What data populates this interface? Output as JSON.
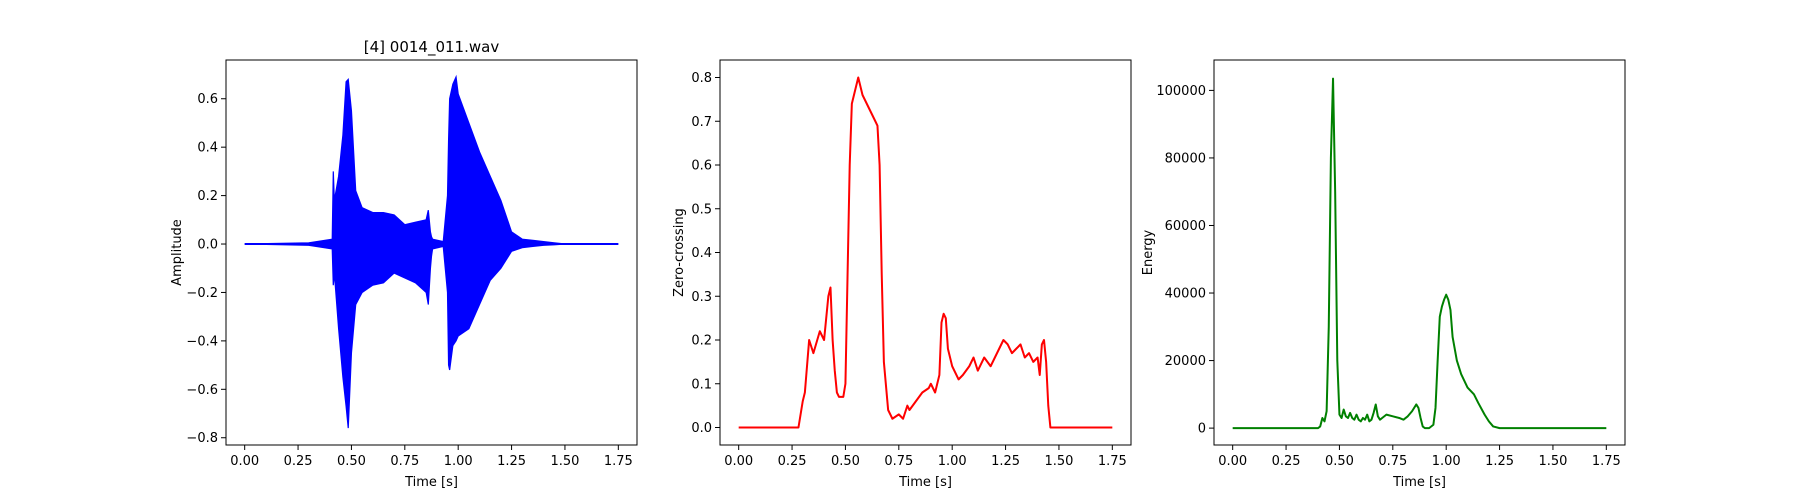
{
  "chart_data": [
    {
      "type": "line",
      "title": "[4] 0014_011.wav",
      "xlabel": "Time [s]",
      "ylabel": "Amplitude",
      "xlim": [
        -0.0875,
        1.8375
      ],
      "ylim": [
        -0.83,
        0.76
      ],
      "xticks": [
        0.0,
        0.25,
        0.5,
        0.75,
        1.0,
        1.25,
        1.5,
        1.75
      ],
      "xtick_labels": [
        "0.00",
        "0.25",
        "0.50",
        "0.75",
        "1.00",
        "1.25",
        "1.50",
        "1.75"
      ],
      "yticks": [
        -0.8,
        -0.6,
        -0.4,
        -0.2,
        0.0,
        0.2,
        0.4,
        0.6
      ],
      "ytick_labels": [
        "−0.8",
        "−0.6",
        "−0.4",
        "−0.2",
        "0.0",
        "0.2",
        "0.4",
        "0.6"
      ],
      "series": [
        {
          "color": "#0000ff",
          "style": "envelope",
          "x": [
            0.0,
            0.3,
            0.41,
            0.415,
            0.42,
            0.44,
            0.46,
            0.475,
            0.485,
            0.5,
            0.52,
            0.55,
            0.6,
            0.65,
            0.7,
            0.75,
            0.8,
            0.85,
            0.86,
            0.87,
            0.875,
            0.88,
            0.93,
            0.95,
            0.955,
            0.96,
            0.975,
            0.99,
            1.0,
            1.05,
            1.1,
            1.15,
            1.2,
            1.25,
            1.3,
            1.35,
            1.4,
            1.45,
            1.5,
            1.75
          ],
          "upper": [
            0.0,
            0.005,
            0.02,
            0.3,
            0.18,
            0.28,
            0.45,
            0.67,
            0.68,
            0.55,
            0.22,
            0.15,
            0.13,
            0.13,
            0.12,
            0.08,
            0.09,
            0.1,
            0.14,
            0.05,
            0.03,
            0.02,
            0.01,
            0.2,
            0.43,
            0.6,
            0.66,
            0.69,
            0.62,
            0.5,
            0.38,
            0.28,
            0.18,
            0.05,
            0.02,
            0.015,
            0.01,
            0.005,
            0.0,
            0.0
          ],
          "lower": [
            0.0,
            -0.005,
            -0.02,
            -0.17,
            -0.12,
            -0.35,
            -0.55,
            -0.67,
            -0.76,
            -0.45,
            -0.25,
            -0.2,
            -0.17,
            -0.16,
            -0.12,
            -0.14,
            -0.16,
            -0.2,
            -0.25,
            -0.1,
            -0.05,
            -0.02,
            -0.01,
            -0.2,
            -0.5,
            -0.52,
            -0.42,
            -0.4,
            -0.38,
            -0.35,
            -0.25,
            -0.15,
            -0.1,
            -0.03,
            -0.015,
            -0.01,
            -0.005,
            -0.003,
            0.0,
            0.0
          ]
        }
      ]
    },
    {
      "type": "line",
      "title": "",
      "xlabel": "Time [s]",
      "ylabel": "Zero-crossing",
      "xlim": [
        -0.0875,
        1.8375
      ],
      "ylim": [
        -0.04,
        0.84
      ],
      "xticks": [
        0.0,
        0.25,
        0.5,
        0.75,
        1.0,
        1.25,
        1.5,
        1.75
      ],
      "xtick_labels": [
        "0.00",
        "0.25",
        "0.50",
        "0.75",
        "1.00",
        "1.25",
        "1.50",
        "1.75"
      ],
      "yticks": [
        0.0,
        0.1,
        0.2,
        0.3,
        0.4,
        0.5,
        0.6,
        0.7,
        0.8
      ],
      "ytick_labels": [
        "0.0",
        "0.1",
        "0.2",
        "0.3",
        "0.4",
        "0.5",
        "0.6",
        "0.7",
        "0.8"
      ],
      "series": [
        {
          "color": "#ff0000",
          "x": [
            0.0,
            0.28,
            0.3,
            0.31,
            0.33,
            0.35,
            0.38,
            0.4,
            0.42,
            0.43,
            0.44,
            0.45,
            0.46,
            0.47,
            0.48,
            0.49,
            0.5,
            0.51,
            0.52,
            0.53,
            0.55,
            0.56,
            0.58,
            0.6,
            0.62,
            0.64,
            0.65,
            0.66,
            0.67,
            0.68,
            0.7,
            0.72,
            0.75,
            0.77,
            0.79,
            0.8,
            0.83,
            0.86,
            0.89,
            0.9,
            0.92,
            0.94,
            0.95,
            0.96,
            0.97,
            0.98,
            1.0,
            1.03,
            1.05,
            1.08,
            1.1,
            1.12,
            1.15,
            1.18,
            1.2,
            1.22,
            1.24,
            1.26,
            1.28,
            1.3,
            1.32,
            1.34,
            1.36,
            1.38,
            1.4,
            1.41,
            1.42,
            1.43,
            1.44,
            1.45,
            1.46,
            1.75
          ],
          "y": [
            0.0,
            0.0,
            0.06,
            0.08,
            0.2,
            0.17,
            0.22,
            0.2,
            0.3,
            0.32,
            0.2,
            0.13,
            0.08,
            0.07,
            0.07,
            0.07,
            0.1,
            0.35,
            0.6,
            0.74,
            0.78,
            0.8,
            0.76,
            0.74,
            0.72,
            0.7,
            0.69,
            0.6,
            0.35,
            0.15,
            0.04,
            0.02,
            0.03,
            0.02,
            0.05,
            0.04,
            0.06,
            0.08,
            0.09,
            0.1,
            0.08,
            0.12,
            0.24,
            0.26,
            0.25,
            0.18,
            0.14,
            0.11,
            0.12,
            0.14,
            0.16,
            0.13,
            0.16,
            0.14,
            0.16,
            0.18,
            0.2,
            0.19,
            0.17,
            0.18,
            0.19,
            0.16,
            0.17,
            0.15,
            0.16,
            0.12,
            0.19,
            0.2,
            0.15,
            0.05,
            0.0,
            0.0
          ]
        }
      ]
    },
    {
      "type": "line",
      "title": "",
      "xlabel": "Time [s]",
      "ylabel": "Energy",
      "xlim": [
        -0.0875,
        1.8375
      ],
      "ylim": [
        -5000,
        109000
      ],
      "xticks": [
        0.0,
        0.25,
        0.5,
        0.75,
        1.0,
        1.25,
        1.5,
        1.75
      ],
      "xtick_labels": [
        "0.00",
        "0.25",
        "0.50",
        "0.75",
        "1.00",
        "1.25",
        "1.50",
        "1.75"
      ],
      "yticks": [
        0,
        20000,
        40000,
        60000,
        80000,
        100000
      ],
      "ytick_labels": [
        "0",
        "20000",
        "40000",
        "60000",
        "80000",
        "100000"
      ],
      "series": [
        {
          "color": "#008000",
          "x": [
            0.0,
            0.4,
            0.41,
            0.42,
            0.43,
            0.44,
            0.45,
            0.46,
            0.47,
            0.48,
            0.49,
            0.5,
            0.51,
            0.52,
            0.53,
            0.54,
            0.55,
            0.56,
            0.57,
            0.58,
            0.59,
            0.6,
            0.61,
            0.62,
            0.63,
            0.64,
            0.65,
            0.66,
            0.67,
            0.68,
            0.69,
            0.7,
            0.72,
            0.75,
            0.78,
            0.8,
            0.82,
            0.84,
            0.86,
            0.87,
            0.88,
            0.89,
            0.9,
            0.92,
            0.94,
            0.95,
            0.96,
            0.97,
            0.98,
            0.99,
            1.0,
            1.01,
            1.02,
            1.03,
            1.05,
            1.07,
            1.1,
            1.13,
            1.15,
            1.18,
            1.2,
            1.22,
            1.25,
            1.3,
            1.75
          ],
          "y": [
            0,
            0,
            500,
            3000,
            2000,
            5000,
            30000,
            80000,
            103500,
            70000,
            20000,
            4000,
            3000,
            5500,
            3500,
            3000,
            4500,
            3000,
            2500,
            4000,
            2500,
            2000,
            3000,
            2500,
            4000,
            2000,
            2500,
            4500,
            7000,
            3500,
            2500,
            3000,
            4000,
            3500,
            3000,
            2500,
            3500,
            5000,
            7000,
            6000,
            3000,
            500,
            0,
            0,
            1000,
            6000,
            20000,
            33000,
            36000,
            38000,
            39500,
            38000,
            35000,
            27000,
            20000,
            16000,
            12000,
            10000,
            7500,
            4000,
            2000,
            500,
            0,
            0,
            0
          ]
        }
      ]
    }
  ]
}
